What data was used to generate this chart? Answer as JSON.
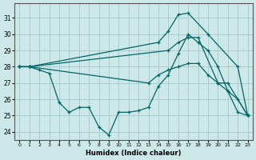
{
  "xlabel": "Humidex (Indice chaleur)",
  "background_color": "#cce8e8",
  "grid_color": "#aacccc",
  "line_color": "#006666",
  "xlim": [
    -0.5,
    23.5
  ],
  "ylim": [
    23.5,
    31.9
  ],
  "yticks": [
    24,
    25,
    26,
    27,
    28,
    29,
    30,
    31
  ],
  "xticks": [
    0,
    1,
    2,
    3,
    4,
    5,
    6,
    7,
    8,
    9,
    10,
    11,
    12,
    13,
    14,
    15,
    16,
    17,
    18,
    19,
    20,
    21,
    22,
    23
  ],
  "lines": [
    {
      "x": [
        0,
        1,
        14,
        15,
        16,
        17,
        19,
        22,
        23
      ],
      "y": [
        28,
        28,
        29.5,
        30.2,
        31.2,
        31.3,
        30.0,
        28.0,
        25.0
      ]
    },
    {
      "x": [
        0,
        1,
        15,
        16,
        17,
        18,
        20,
        21,
        23
      ],
      "y": [
        28,
        28,
        29.0,
        29.5,
        29.8,
        29.8,
        27.0,
        27.0,
        25.0
      ]
    },
    {
      "x": [
        0,
        1,
        13,
        14,
        15,
        16,
        17,
        18,
        19,
        20,
        21,
        22,
        23
      ],
      "y": [
        28,
        28,
        27.0,
        27.5,
        27.8,
        28.0,
        28.2,
        28.2,
        27.5,
        27.0,
        26.5,
        26.0,
        25.0
      ]
    },
    {
      "x": [
        0,
        1,
        2,
        3,
        4,
        5,
        6,
        7,
        8,
        9,
        10,
        11,
        12,
        13,
        14,
        15,
        16,
        17,
        18,
        19,
        20,
        21,
        22,
        23
      ],
      "y": [
        28,
        28,
        27.8,
        27.6,
        25.8,
        25.2,
        25.5,
        25.5,
        24.3,
        23.8,
        25.2,
        25.2,
        25.3,
        25.5,
        26.8,
        27.5,
        28.8,
        30.0,
        29.5,
        29.0,
        28.0,
        26.5,
        25.2,
        25.0
      ]
    }
  ]
}
